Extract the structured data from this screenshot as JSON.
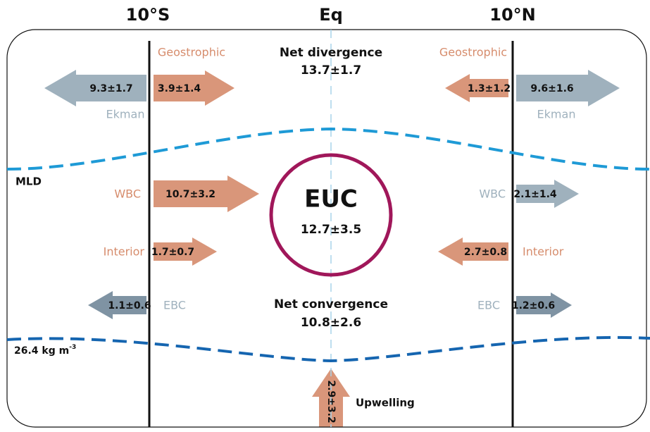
{
  "header": {
    "south": "10°S",
    "equator": "Eq",
    "north": "10°N"
  },
  "south": {
    "geostrophic": {
      "label": "Geostrophic",
      "value": "3.9±1.4"
    },
    "ekman": {
      "label": "Ekman",
      "value": "9.3±1.7"
    },
    "wbc": {
      "label": "WBC",
      "value": "10.7±3.2"
    },
    "interior": {
      "label": "Interior",
      "value": "1.7±0.7"
    },
    "ebc": {
      "label": "EBC",
      "value": "1.1±0.6"
    }
  },
  "north": {
    "geostrophic": {
      "label": "Geostrophic",
      "value": "1.3±1.2"
    },
    "ekman": {
      "label": "Ekman",
      "value": "9.6±1.6"
    },
    "wbc": {
      "label": "WBC",
      "value": "2.1±1.4"
    },
    "interior": {
      "label": "Interior",
      "value": "2.7±0.8"
    },
    "ebc": {
      "label": "EBC",
      "value": "1.2±0.6"
    }
  },
  "center": {
    "divergence": {
      "label": "Net divergence",
      "value": "13.7±1.7"
    },
    "euc": {
      "label": "EUC",
      "value": "12.7±3.5"
    },
    "convergence": {
      "label": "Net convergence",
      "value": "10.8±2.6"
    },
    "upwelling": {
      "label": "Upwelling",
      "value": "2.9±3.2"
    }
  },
  "layers": {
    "mld": "MLD",
    "isopycnal": {
      "text": "26.4 kg m",
      "superscript": "-3"
    }
  }
}
